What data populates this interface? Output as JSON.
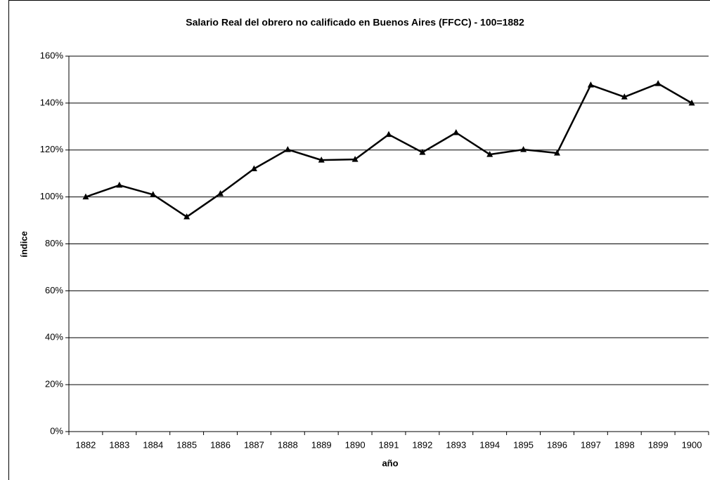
{
  "chart_data": {
    "type": "line",
    "title": "Salario Real del obrero no calificado en Buenos Aires (FFCC) - 100=1882",
    "xlabel": "año",
    "ylabel": "índice",
    "categories": [
      "1882",
      "1883",
      "1884",
      "1885",
      "1886",
      "1887",
      "1888",
      "1889",
      "1890",
      "1891",
      "1892",
      "1893",
      "1894",
      "1895",
      "1896",
      "1897",
      "1898",
      "1899",
      "1900"
    ],
    "series": [
      {
        "color": "#000000",
        "marker": "triangle",
        "values": [
          100,
          105,
          101,
          91.5,
          101.4,
          112,
          120.2,
          115.7,
          116,
          126.6,
          119,
          127.4,
          118.1,
          120.2,
          118.7,
          147.7,
          142.6,
          148.3,
          140
        ]
      }
    ],
    "ylim": [
      0,
      160
    ],
    "yticks": [
      {
        "value": 0,
        "label": "0%"
      },
      {
        "value": 20,
        "label": "20%"
      },
      {
        "value": 40,
        "label": "40%"
      },
      {
        "value": 60,
        "label": "60%"
      },
      {
        "value": 80,
        "label": "80%"
      },
      {
        "value": 100,
        "label": "100%"
      },
      {
        "value": 120,
        "label": "120%"
      },
      {
        "value": 140,
        "label": "140%"
      },
      {
        "value": 160,
        "label": "160%"
      }
    ],
    "grid": true
  }
}
